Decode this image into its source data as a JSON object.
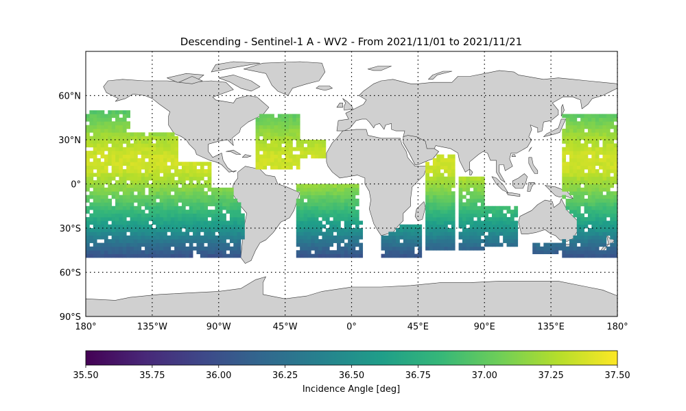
{
  "figure": {
    "title": "Descending - Sentinel-1 A - WV2 - From 2021/11/01 to 2021/11/21"
  },
  "map": {
    "projection": "plate-carree",
    "lon_range": [
      -180,
      180
    ],
    "lat_range": [
      -90,
      90
    ],
    "land_color": "#d0d0d0",
    "coast_color": "#000000",
    "gridlines": "dotted",
    "gridline_lons": [
      -135,
      -90,
      -45,
      0,
      45,
      90,
      135,
      180
    ],
    "gridline_lats": [
      -60,
      -30,
      0,
      30,
      60
    ],
    "lon_ticks": [
      {
        "value": -180,
        "label": "180°"
      },
      {
        "value": -135,
        "label": "135°W"
      },
      {
        "value": -90,
        "label": "90°W"
      },
      {
        "value": -45,
        "label": "45°W"
      },
      {
        "value": 0,
        "label": "0°"
      },
      {
        "value": 45,
        "label": "45°E"
      },
      {
        "value": 90,
        "label": "90°E"
      },
      {
        "value": 135,
        "label": "135°E"
      },
      {
        "value": 180,
        "label": "180°"
      }
    ],
    "lat_ticks": [
      {
        "value": 60,
        "label": "60°N"
      },
      {
        "value": 30,
        "label": "30°N"
      },
      {
        "value": 0,
        "label": "0°"
      },
      {
        "value": -30,
        "label": "30°S"
      },
      {
        "value": -60,
        "label": "60°S"
      },
      {
        "value": -90,
        "label": "90°S"
      }
    ]
  },
  "colorbar": {
    "label": "Incidence Angle [deg]",
    "vmin": 35.5,
    "vmax": 37.5,
    "colormap": "viridis",
    "colormap_stops": [
      "#440154",
      "#482878",
      "#3e4989",
      "#31688e",
      "#26828e",
      "#1f9e89",
      "#35b779",
      "#6ece58",
      "#b5de2b",
      "#fde725"
    ],
    "tick_labels": [
      "35.50",
      "35.75",
      "36.00",
      "36.25",
      "36.50",
      "36.75",
      "37.00",
      "37.25",
      "37.50"
    ]
  },
  "chart_data": {
    "type": "heatmap",
    "title": "Descending - Sentinel-1 A - WV2 - From 2021/11/01 to 2021/11/21",
    "xlabel": "",
    "ylabel": "",
    "xlim": [
      -180,
      180
    ],
    "ylim": [
      -90,
      90
    ],
    "cell_deg": 2.5,
    "value_label": "Incidence Angle [deg]",
    "value_range": [
      35.5,
      37.5
    ],
    "value_by_latitude": [
      {
        "lat": 50,
        "value": 36.95
      },
      {
        "lat": 40,
        "value": 37.1
      },
      {
        "lat": 30,
        "value": 37.25
      },
      {
        "lat": 20,
        "value": 37.35
      },
      {
        "lat": 10,
        "value": 37.35
      },
      {
        "lat": 0,
        "value": 37.2
      },
      {
        "lat": -10,
        "value": 37.0
      },
      {
        "lat": -20,
        "value": 36.8
      },
      {
        "lat": -30,
        "value": 36.55
      },
      {
        "lat": -40,
        "value": 36.25
      },
      {
        "lat": -50,
        "value": 36.0
      }
    ],
    "coverage_bands": [
      {
        "lon": [
          -180,
          -150
        ],
        "lat": [
          -50,
          50
        ]
      },
      {
        "lon": [
          -150,
          -118
        ],
        "lat": [
          -50,
          35
        ]
      },
      {
        "lon": [
          -118,
          -95
        ],
        "lat": [
          -50,
          15
        ]
      },
      {
        "lon": [
          -112,
          -73
        ],
        "lat": [
          -50,
          -3
        ]
      },
      {
        "lon": [
          -65,
          -35
        ],
        "lat": [
          10,
          48
        ]
      },
      {
        "lon": [
          -50,
          -18
        ],
        "lat": [
          18,
          30
        ]
      },
      {
        "lon": [
          -38,
          5
        ],
        "lat": [
          -50,
          0
        ]
      },
      {
        "lon": [
          -5,
          8
        ],
        "lat": [
          -50,
          -25
        ]
      },
      {
        "lon": [
          20,
          48
        ],
        "lat": [
          -50,
          -27
        ]
      },
      {
        "lon": [
          50,
          70
        ],
        "lat": [
          -45,
          20
        ]
      },
      {
        "lon": [
          72,
          90
        ],
        "lat": [
          -45,
          6
        ]
      },
      {
        "lon": [
          90,
          112
        ],
        "lat": [
          -42,
          -15
        ]
      },
      {
        "lon": [
          122,
          145
        ],
        "lat": [
          -48,
          -40
        ]
      },
      {
        "lon": [
          143,
          180
        ],
        "lat": [
          -50,
          47
        ]
      }
    ]
  }
}
